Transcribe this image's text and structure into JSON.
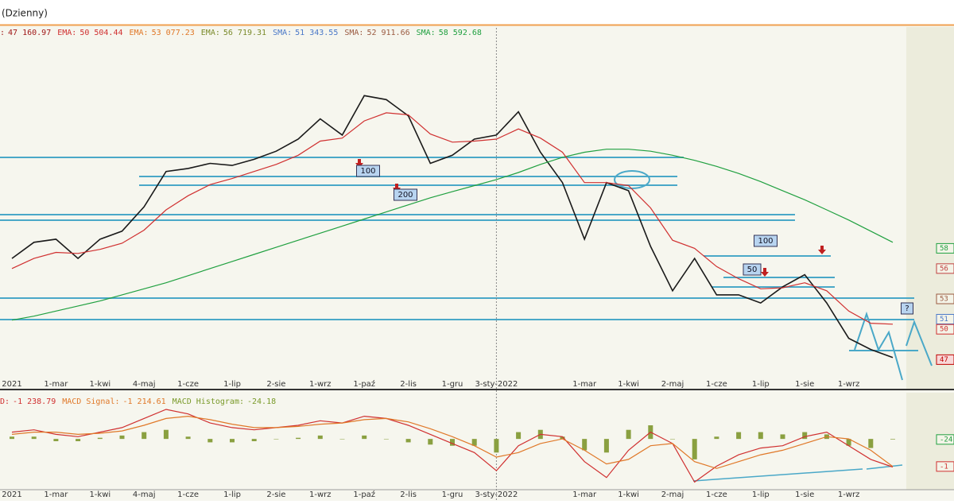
{
  "title": "(Dzienny)",
  "chart_data": [
    {
      "type": "line",
      "indicators": [
        {
          "name": ":",
          "label": "47 160.97",
          "color": "#a01818"
        },
        {
          "name": "EMA:",
          "label": "50 504.44",
          "color": "#d03030"
        },
        {
          "name": "EMA:",
          "label": "53 077.23",
          "color": "#e07828"
        },
        {
          "name": "EMA:",
          "label": "56 719.31",
          "color": "#7a8a2a"
        },
        {
          "name": "SMA:",
          "label": "51 343.55",
          "color": "#4a78c8"
        },
        {
          "name": "SMA:",
          "label": "52 911.66",
          "color": "#9a5a40"
        },
        {
          "name": "SMA:",
          "label": "58 592.68",
          "color": "#20a040"
        }
      ],
      "categories": [
        "2021",
        null,
        "1-mar",
        null,
        "1-kwi",
        null,
        "4-maj",
        null,
        "1-cze",
        null,
        "1-lip",
        null,
        "2-sie",
        null,
        "1-wrz",
        null,
        "1-paź",
        null,
        "2-lis",
        null,
        "1-gru",
        null,
        "3-sty-2022",
        null,
        null,
        null,
        "1-mar",
        null,
        "1-kwi",
        null,
        "2-maj",
        null,
        "1-cze",
        null,
        "1-lip",
        null,
        "1-sie",
        null,
        "1-wrz",
        null,
        null
      ],
      "ylim": [
        44.2,
        79.8
      ],
      "series": [
        {
          "type": "line",
          "color": "#1a1a1a",
          "values": [
            57.0,
            58.6,
            58.9,
            57.0,
            58.9,
            59.7,
            62.1,
            65.6,
            65.9,
            66.4,
            66.2,
            66.8,
            67.6,
            68.8,
            70.8,
            69.2,
            73.1,
            72.7,
            71.1,
            66.4,
            67.2,
            68.8,
            69.2,
            71.5,
            67.5,
            64.5,
            58.9,
            64.5,
            63.7,
            58.2,
            53.8,
            57.0,
            53.4,
            53.4,
            52.6,
            54.2,
            55.4,
            52.6,
            49.1,
            48.0,
            47.2
          ]
        },
        {
          "type": "line",
          "color": "#20a040",
          "values": [
            50.9,
            51.3,
            51.8,
            52.3,
            52.8,
            53.4,
            54.0,
            54.6,
            55.3,
            56.0,
            56.7,
            57.4,
            58.1,
            58.8,
            59.5,
            60.2,
            60.9,
            61.6,
            62.3,
            63.0,
            63.6,
            64.2,
            64.8,
            65.5,
            66.3,
            67.0,
            67.5,
            67.8,
            67.8,
            67.6,
            67.2,
            66.7,
            66.1,
            65.4,
            64.6,
            63.7,
            62.8,
            61.8,
            60.8,
            59.7,
            58.6
          ]
        },
        {
          "type": "line",
          "color": "#d03030",
          "values": [
            56.0,
            57.0,
            57.6,
            57.5,
            57.9,
            58.5,
            59.8,
            61.8,
            63.2,
            64.3,
            64.9,
            65.6,
            66.3,
            67.2,
            68.6,
            68.9,
            70.6,
            71.4,
            71.2,
            69.3,
            68.5,
            68.6,
            68.8,
            69.8,
            68.9,
            67.5,
            64.5,
            64.5,
            64.2,
            62.0,
            58.8,
            58.0,
            56.2,
            55.0,
            54.0,
            54.1,
            54.6,
            53.8,
            51.8,
            50.6,
            50.5
          ]
        }
      ],
      "tags": [
        {
          "value": 58,
          "color": "#20a040"
        },
        {
          "value": 56,
          "color": "#c04040"
        },
        {
          "value": 53,
          "color": "#9a5a40"
        },
        {
          "value": 51,
          "color": "#4a78c8"
        },
        {
          "value": 50,
          "color": "#d03030"
        },
        {
          "value": 47,
          "color": "#c00000"
        }
      ],
      "annotations": [
        "100",
        "200",
        "100",
        "50",
        "?"
      ]
    },
    {
      "type": "line",
      "indicators": [
        {
          "name": "D:",
          "label": "-1 238.79",
          "color": "#d03030"
        },
        {
          "name": "MACD Signal:",
          "label": "-1 214.61",
          "color": "#e07828"
        },
        {
          "name": "MACD Histogram:",
          "label": "-24.18",
          "color": "#7a9a2a"
        }
      ],
      "categories": [
        "2021",
        null,
        "1-mar",
        null,
        "1-kwi",
        null,
        "4-maj",
        null,
        "1-cze",
        null,
        "1-lip",
        null,
        "2-sie",
        null,
        "1-wrz",
        null,
        "1-paź",
        null,
        "2-lis",
        null,
        "1-gru",
        null,
        "3-sty-2022",
        null,
        null,
        null,
        "1-mar",
        null,
        "1-kwi",
        null,
        "2-maj",
        null,
        "1-cze",
        null,
        "1-lip",
        null,
        "1-sie",
        null,
        "1-wrz",
        null,
        null
      ],
      "ylim": [
        -2200,
        2000
      ],
      "series": [
        {
          "type": "bar",
          "color": "#8aa040",
          "values": [
            100,
            100,
            -100,
            -100,
            50,
            150,
            300,
            400,
            100,
            -150,
            -150,
            -100,
            0,
            50,
            150,
            0,
            150,
            0,
            -150,
            -250,
            -300,
            -300,
            -600,
            300,
            400,
            100,
            -500,
            -600,
            400,
            600,
            0,
            -900,
            100,
            300,
            300,
            200,
            300,
            200,
            -300,
            -400,
            -24
          ]
        },
        {
          "type": "line",
          "color": "#d03030",
          "values": [
            300,
            400,
            200,
            100,
            300,
            500,
            900,
            1300,
            1100,
            700,
            500,
            400,
            500,
            600,
            800,
            700,
            1000,
            900,
            600,
            200,
            -200,
            -600,
            -1400,
            -300,
            200,
            100,
            -1000,
            -1700,
            -500,
            300,
            -200,
            -1900,
            -1200,
            -700,
            -400,
            -300,
            100,
            300,
            -300,
            -900,
            -1239
          ]
        },
        {
          "type": "line",
          "color": "#e07828",
          "values": [
            200,
            300,
            300,
            200,
            250,
            350,
            600,
            900,
            1000,
            850,
            650,
            500,
            500,
            550,
            650,
            700,
            850,
            900,
            750,
            450,
            100,
            -300,
            -800,
            -600,
            -200,
            0,
            -500,
            -1100,
            -900,
            -300,
            -200,
            -1000,
            -1300,
            -1000,
            -700,
            -500,
            -200,
            100,
            0,
            -500,
            -1215
          ]
        }
      ],
      "tags": [
        {
          "value": -24,
          "color": "#20a040"
        },
        {
          "value": -1214.61,
          "label": "-1",
          "color": "#d03030"
        }
      ]
    }
  ]
}
